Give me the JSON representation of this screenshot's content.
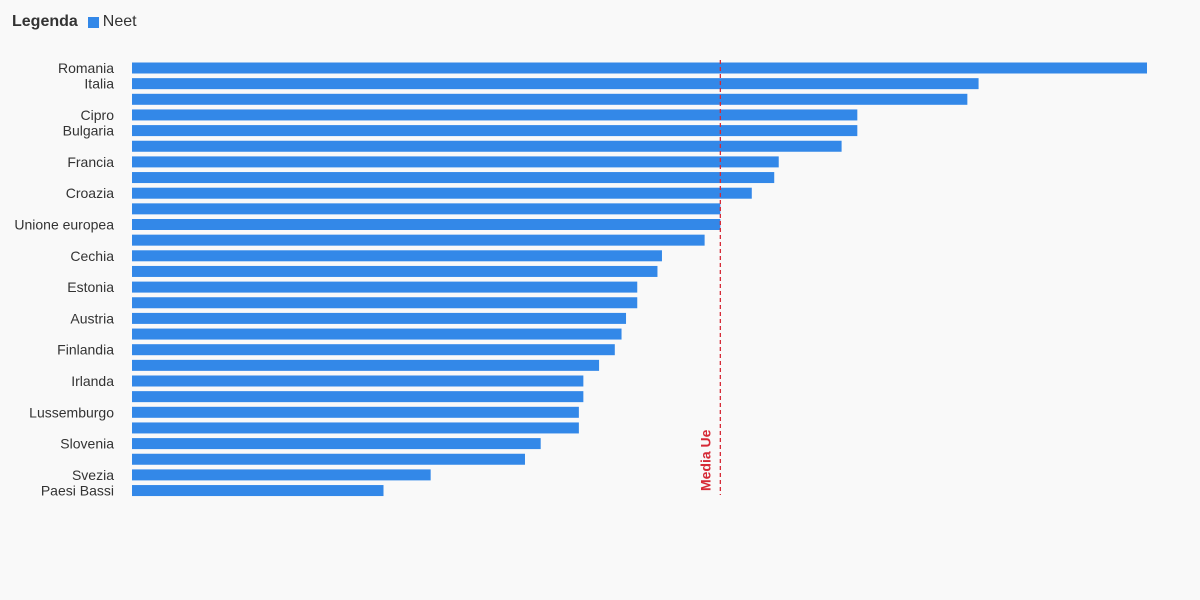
{
  "legend": {
    "title": "Legenda",
    "series_name": "Neet",
    "color": "#3388e8"
  },
  "reference_line": {
    "label": "Media Ue",
    "value": 13.1,
    "color": "#d62a36"
  },
  "chart_data": {
    "type": "bar",
    "orientation": "horizontal",
    "title": "",
    "xlabel": "",
    "ylabel": "",
    "xlim": [
      0,
      23
    ],
    "grid": false,
    "legend_position": "top-left",
    "categories": [
      "Romania",
      "Italia",
      "",
      "Cipro",
      "Bulgaria",
      "",
      "Francia",
      "",
      "Croazia",
      "",
      "Unione europea",
      "",
      "Cechia",
      "",
      "Estonia",
      "",
      "Austria",
      "",
      "Finlandia",
      "",
      "Irlanda",
      "",
      "Lussemburgo",
      "",
      "Slovenia",
      "",
      "Svezia",
      "Paesi Bassi"
    ],
    "series": [
      {
        "name": "Neet",
        "color": "#3388e8",
        "values": [
          22.6,
          18.85,
          18.6,
          16.15,
          16.15,
          15.8,
          14.4,
          14.3,
          13.8,
          13.1,
          13.1,
          12.75,
          11.8,
          11.7,
          11.25,
          11.25,
          11.0,
          10.9,
          10.75,
          10.4,
          10.05,
          10.05,
          9.95,
          9.95,
          9.1,
          8.75,
          6.65,
          5.6
        ]
      }
    ]
  }
}
